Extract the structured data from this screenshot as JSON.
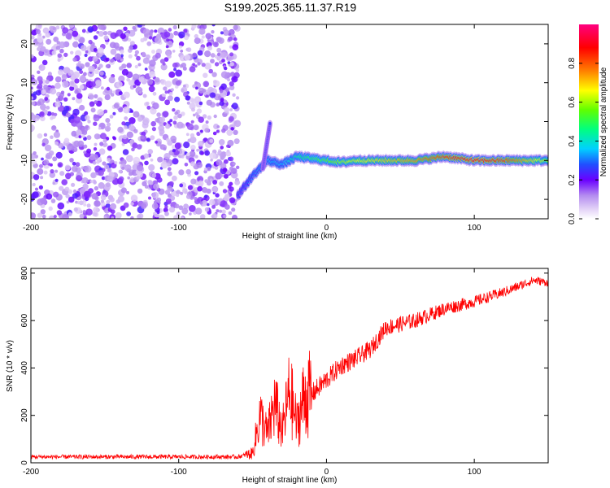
{
  "title": "S199.2025.365.11.37.R19",
  "chart_data": [
    {
      "type": "heatmap",
      "xlabel": "Height of straight line (km)",
      "ylabel": "Frequency (Hz)",
      "xlim": [
        -200,
        150
      ],
      "ylim": [
        -25,
        25
      ],
      "xticks": [
        -200,
        -100,
        0,
        100
      ],
      "yticks": [
        -20,
        -10,
        0,
        10,
        20
      ],
      "colorbar": {
        "label": "Normalized spectral amplitude",
        "range": [
          0,
          1
        ],
        "ticks": [
          "0.0",
          "0.2",
          "0.4",
          "0.6",
          "0.8"
        ]
      },
      "noise_region_x": [
        -200,
        -60
      ],
      "ridge": {
        "x": [
          -60,
          -50,
          -40,
          -30,
          -20,
          -10,
          0,
          10,
          20,
          40,
          60,
          80,
          100,
          120,
          150
        ],
        "y": [
          -19,
          -14,
          -10,
          -11,
          -9,
          -9.5,
          -10,
          -10.5,
          -10,
          -10,
          -10,
          -9,
          -10,
          -10,
          -10
        ],
        "amplitude": [
          0.25,
          0.3,
          0.35,
          0.35,
          0.45,
          0.5,
          0.55,
          0.6,
          0.65,
          0.7,
          0.75,
          0.85,
          0.9,
          0.85,
          0.6
        ]
      },
      "feature_x": [
        -43,
        -38
      ],
      "feature_y": [
        -12,
        0
      ]
    },
    {
      "type": "line",
      "xlabel": "Height of straight line (km)",
      "ylabel": "SNR (10 * v/v)",
      "xlim": [
        -200,
        150
      ],
      "ylim": [
        0,
        820
      ],
      "xticks": [
        -200,
        -100,
        0,
        100
      ],
      "yticks": [
        0,
        200,
        400,
        600,
        800
      ],
      "series": [
        {
          "color": "#ff0000",
          "x": [
            -200,
            -150,
            -100,
            -60,
            -50,
            -45,
            -40,
            -35,
            -30,
            -25,
            -20,
            -15,
            -10,
            0,
            10,
            20,
            30,
            40,
            60,
            80,
            100,
            120,
            140,
            150
          ],
          "y": [
            25,
            25,
            25,
            25,
            40,
            200,
            120,
            250,
            130,
            300,
            160,
            280,
            290,
            350,
            410,
            440,
            480,
            570,
            600,
            650,
            680,
            720,
            770,
            760
          ]
        }
      ]
    }
  ]
}
